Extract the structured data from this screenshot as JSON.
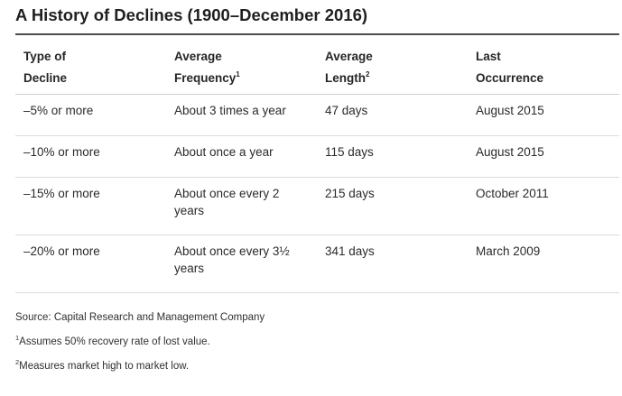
{
  "title": "A History of Declines (1900–December 2016)",
  "headers": {
    "type_line1": "Type of",
    "type_line2": "Decline",
    "freq_line1": "Average",
    "freq_line2": "Frequency",
    "freq_sup": "1",
    "length_line1": "Average",
    "length_line2": "Length",
    "length_sup": "2",
    "last_line1": "Last",
    "last_line2": "Occurrence"
  },
  "rows": [
    {
      "type": "–5% or more",
      "freq_line1": "About 3 times a year",
      "freq_line2": "",
      "length": "47 days",
      "last": "August 2015"
    },
    {
      "type": "–10% or more",
      "freq_line1": "About once a year",
      "freq_line2": "",
      "length": "115 days",
      "last": "August 2015"
    },
    {
      "type": "–15% or more",
      "freq_line1": "About once every 2",
      "freq_line2": "years",
      "length": "215 days",
      "last": "October 2011"
    },
    {
      "type": "–20% or more",
      "freq_line1": "About once every 3½",
      "freq_line2": "years",
      "length": "341 days",
      "last": "March 2009"
    }
  ],
  "footnotes": {
    "source": "Source: Capital Research and Management Company",
    "note1_marker": "1",
    "note1_text": "Assumes 50% recovery rate of lost value.",
    "note2_marker": "2",
    "note2_text": "Measures market high to market low."
  }
}
